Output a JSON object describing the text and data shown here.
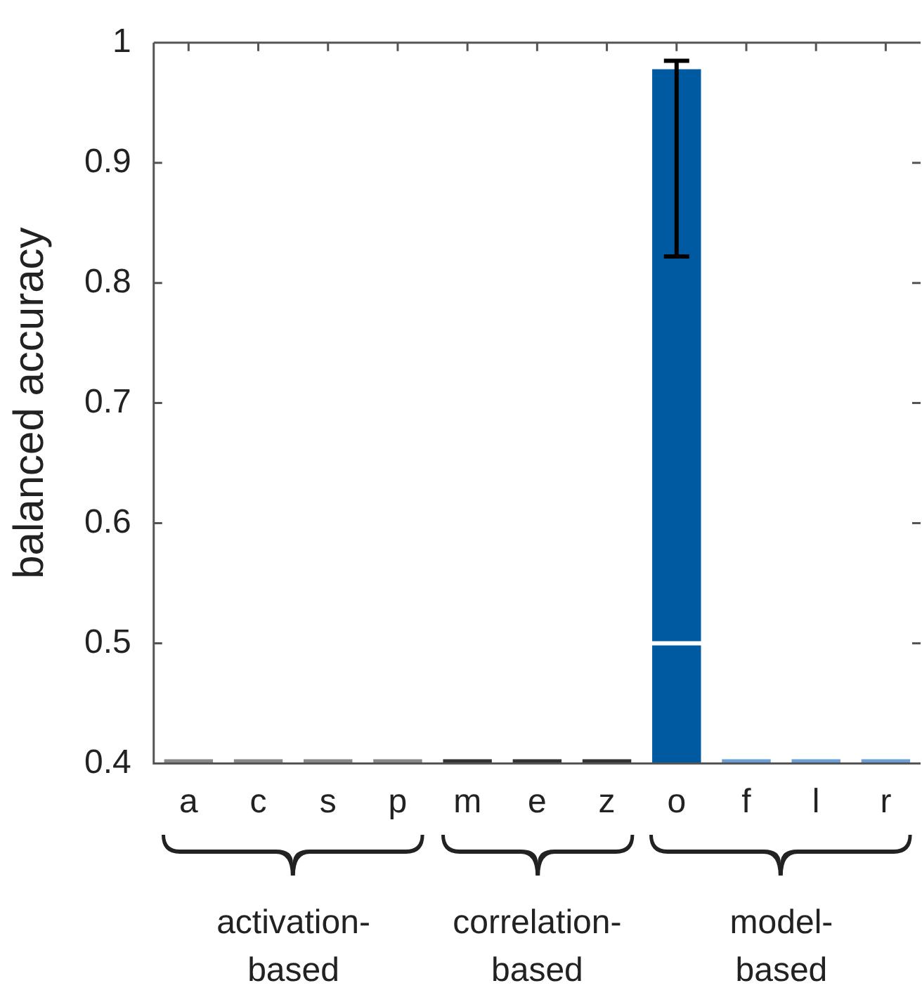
{
  "chart_data": {
    "type": "bar",
    "ylabel": "balanced accuracy",
    "categories": [
      "a",
      "c",
      "s",
      "p",
      "m",
      "e",
      "z",
      "o",
      "f",
      "l",
      "r"
    ],
    "values": [
      0.4,
      0.4,
      0.4,
      0.4,
      0.4,
      0.4,
      0.4,
      0.978,
      0.4,
      0.4,
      0.4
    ],
    "colors": [
      "#888888",
      "#888888",
      "#888888",
      "#888888",
      "#333333",
      "#333333",
      "#333333",
      "#005aa2",
      "#6a9fd8",
      "#6a9fd8",
      "#6a9fd8"
    ],
    "errors": [
      null,
      null,
      null,
      null,
      null,
      null,
      null,
      [
        0.822,
        0.985
      ],
      null,
      null,
      null
    ],
    "ylim": [
      0.4,
      1
    ],
    "yticks": [
      0.4,
      0.5,
      0.6,
      0.7,
      0.8,
      0.9,
      1
    ],
    "ref_lines": [
      {
        "axis": "y",
        "value": 0.5,
        "color": "#ffffff"
      }
    ],
    "annotations": [
      "activation-\nbased",
      "correlation-\nbased",
      "model-\nbased"
    ],
    "grid": false,
    "legend": false
  }
}
